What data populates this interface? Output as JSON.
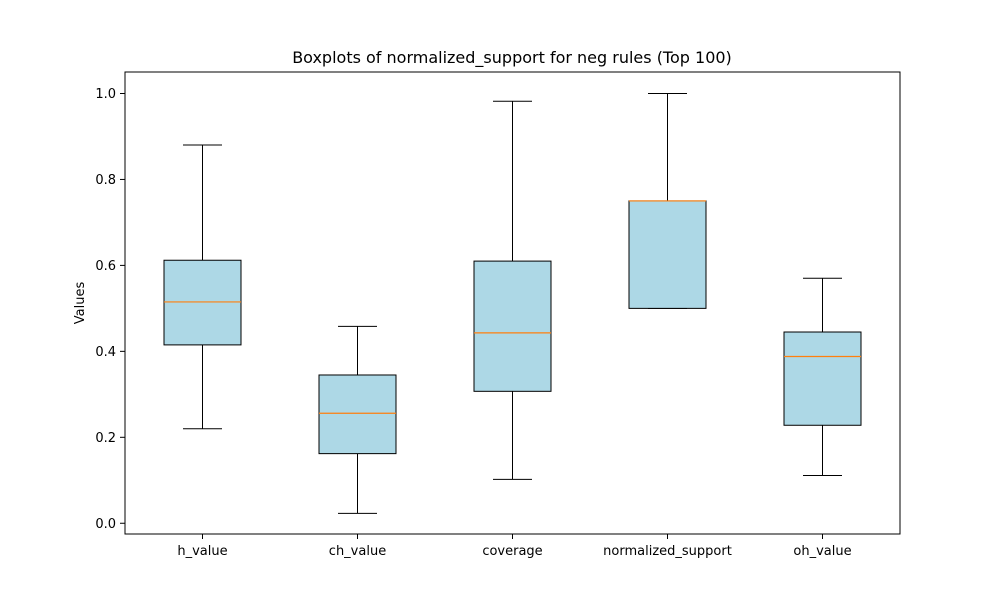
{
  "chart_data": {
    "type": "boxplot",
    "title": "Boxplots of normalized_support for neg rules (Top 100)",
    "xlabel": "",
    "ylabel": "Values",
    "ylim": [
      -0.025,
      1.05
    ],
    "yticks": [
      0.0,
      0.2,
      0.4,
      0.6,
      0.8,
      1.0
    ],
    "ytick_labels": [
      "0.0",
      "0.2",
      "0.4",
      "0.6",
      "0.8",
      "1.0"
    ],
    "grid": false,
    "colors": {
      "box_fill": "#add8e6",
      "median": "#ff7f0e",
      "stroke": "#000000"
    },
    "categories": [
      "h_value",
      "ch_value",
      "coverage",
      "normalized_support",
      "oh_value"
    ],
    "boxes": [
      {
        "whisker_low": 0.22,
        "q1": 0.415,
        "median": 0.515,
        "q3": 0.612,
        "whisker_high": 0.88
      },
      {
        "whisker_low": 0.023,
        "q1": 0.162,
        "median": 0.256,
        "q3": 0.345,
        "whisker_high": 0.458
      },
      {
        "whisker_low": 0.102,
        "q1": 0.307,
        "median": 0.443,
        "q3": 0.61,
        "whisker_high": 0.982
      },
      {
        "whisker_low": 0.5,
        "q1": 0.5,
        "median": 0.75,
        "q3": 0.75,
        "whisker_high": 1.0
      },
      {
        "whisker_low": 0.111,
        "q1": 0.228,
        "median": 0.388,
        "q3": 0.445,
        "whisker_high": 0.57
      }
    ]
  }
}
